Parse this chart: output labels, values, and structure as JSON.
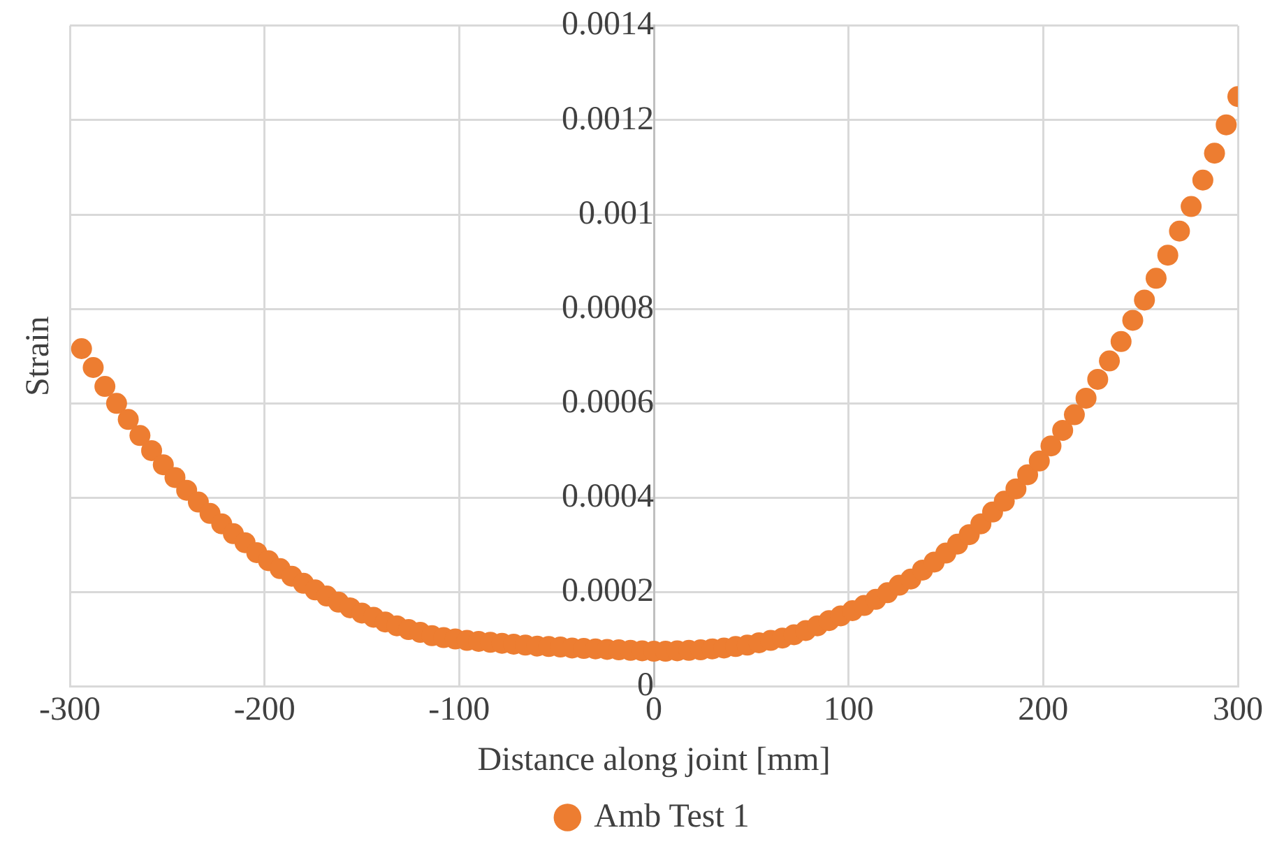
{
  "chart_data": {
    "type": "scatter",
    "xlabel": "Distance along joint [mm]",
    "ylabel": "Strain",
    "xlim": [
      -300,
      300
    ],
    "xticks": [
      -300,
      -200,
      -100,
      0,
      100,
      200,
      300
    ],
    "ylim": [
      0,
      0.0014
    ],
    "yticks": [
      0,
      0.0002,
      0.0004,
      0.0006,
      0.0008,
      0.001,
      0.0012,
      0.0014
    ],
    "grid": true,
    "legend": "bottom",
    "marker": "circle",
    "x": [
      -294,
      -288,
      -282,
      -276,
      -270,
      -264,
      -258,
      -252,
      -246,
      -240,
      -234,
      -228,
      -222,
      -216,
      -210,
      -204,
      -198,
      -192,
      -186,
      -180,
      -174,
      -168,
      -162,
      -156,
      -150,
      -144,
      -138,
      -132,
      -126,
      -120,
      -114,
      -108,
      -102,
      -96,
      -90,
      -84,
      -78,
      -72,
      -66,
      -60,
      -54,
      -48,
      -42,
      -36,
      -30,
      -24,
      -18,
      -12,
      -6,
      0,
      6,
      12,
      18,
      24,
      30,
      36,
      42,
      48,
      54,
      60,
      66,
      72,
      78,
      84,
      90,
      96,
      102,
      108,
      114,
      120,
      126,
      132,
      138,
      144,
      150,
      156,
      162,
      168,
      174,
      180,
      186,
      192,
      198,
      204,
      210,
      216,
      222,
      228,
      234,
      240,
      246,
      252,
      258,
      264,
      270,
      276,
      282,
      288,
      294,
      300
    ],
    "series": [
      {
        "name": "Amb Test 1",
        "color": "#ed7d31",
        "values": [
          0.000716,
          0.000676,
          0.000636,
          0.0006,
          0.000566,
          0.000532,
          0.0005,
          0.00047,
          0.000443,
          0.000416,
          0.000391,
          0.000367,
          0.000345,
          0.000324,
          0.000305,
          0.000284,
          0.000267,
          0.00025,
          0.000234,
          0.000219,
          0.000205,
          0.000192,
          0.000179,
          0.000167,
          0.000156,
          0.000147,
          0.000137,
          0.000129,
          0.000121,
          0.000115,
          0.000108,
          0.000104,
          0.000101,
          9.8e-05,
          9.6e-05,
          9.4e-05,
          9.2e-05,
          9e-05,
          8.8e-05,
          8.6e-05,
          8.5e-05,
          8.4e-05,
          8.2e-05,
          8.1e-05,
          8e-05,
          7.9e-05,
          7.8e-05,
          7.7e-05,
          7.6e-05,
          7.5e-05,
          7.5e-05,
          7.6e-05,
          7.7e-05,
          7.8e-05,
          8e-05,
          8.2e-05,
          8.5e-05,
          8.8e-05,
          9.3e-05,
          9.8e-05,
          0.000103,
          0.00011,
          0.000119,
          0.000129,
          0.00014,
          0.00015,
          0.000161,
          0.000172,
          0.000185,
          0.000199,
          0.000215,
          0.000228,
          0.000247,
          0.000264,
          0.000283,
          0.000302,
          0.000322,
          0.000345,
          0.00037,
          0.000393,
          0.000419,
          0.000449,
          0.000478,
          0.00051,
          0.000543,
          0.000576,
          0.000611,
          0.000651,
          0.00069,
          0.000731,
          0.000776,
          0.000819,
          0.000865,
          0.000914,
          0.000965,
          0.001017,
          0.001073,
          0.00113,
          0.00119,
          0.00125
        ]
      }
    ]
  }
}
